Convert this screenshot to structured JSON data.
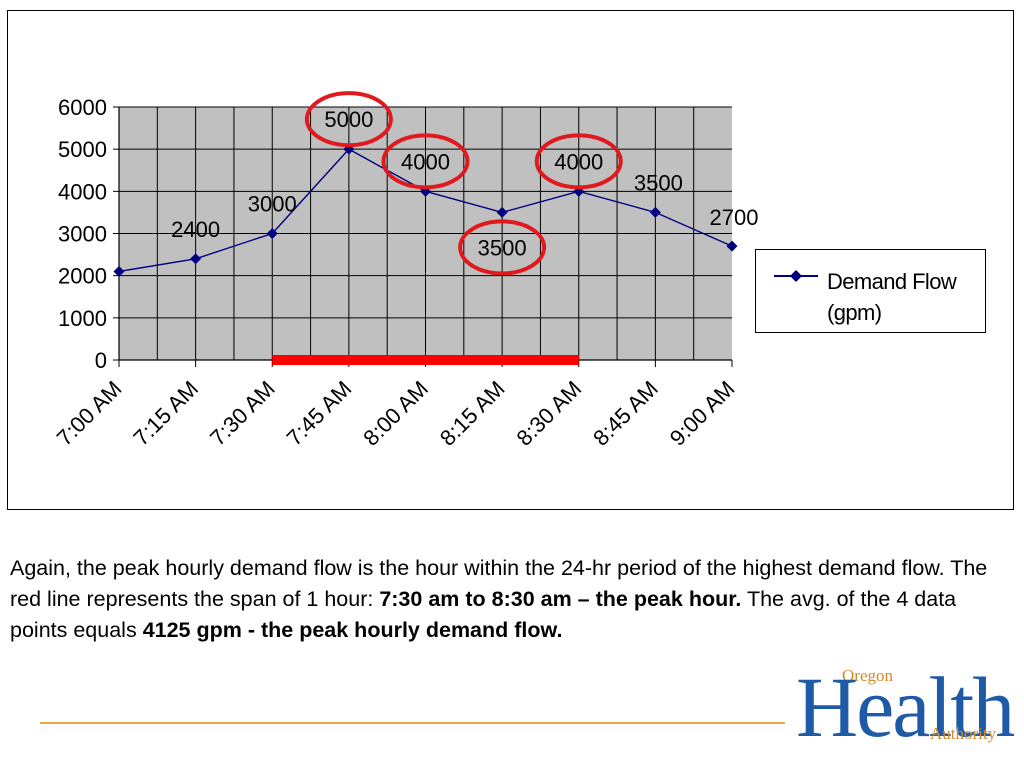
{
  "chart_data": {
    "type": "line",
    "categories": [
      "7:00 AM",
      "7:15 AM",
      "7:30 AM",
      "7:45 AM",
      "8:00 AM",
      "8:15 AM",
      "8:30 AM",
      "8:45 AM",
      "9:00 AM"
    ],
    "series": [
      {
        "name": "Demand Flow (gpm)",
        "values": [
          2100,
          2400,
          3000,
          5000,
          4000,
          3500,
          4000,
          3500,
          2700
        ],
        "color": "#00007f"
      }
    ],
    "data_labels": [
      {
        "category": "7:15 AM",
        "text": "2400"
      },
      {
        "category": "7:30 AM",
        "text": "3000"
      },
      {
        "category": "7:45 AM",
        "text": "5000",
        "circled": true
      },
      {
        "category": "8:00 AM",
        "text": "4000",
        "circled": true
      },
      {
        "category": "8:15 AM",
        "text": "3500",
        "circled": true
      },
      {
        "category": "8:30 AM",
        "text": "4000",
        "circled": true
      },
      {
        "category": "8:45 AM",
        "text": "3500"
      },
      {
        "category": "9:00 AM",
        "text": "2700"
      }
    ],
    "yticks": [
      "0",
      "1000",
      "2000",
      "3000",
      "4000",
      "5000",
      "6000"
    ],
    "ylim": [
      0,
      6000
    ],
    "grid": true,
    "plot_background": "#c0c0c0",
    "highlight_span": {
      "from": "7:30 AM",
      "to": "8:30 AM",
      "color": "#ff0000"
    },
    "circle_color": "#e0191f",
    "title": "",
    "xlabel": "",
    "ylabel": "",
    "legend": {
      "position": "right",
      "labels": [
        "Demand Flow",
        "(gpm)"
      ]
    }
  },
  "caption": {
    "part1": "Again, the peak hourly demand flow is the hour within the 24-hr period of the highest demand flow.  The red line represents the span of 1 hour: ",
    "bold1": "7:30 am to 8:30 am – the peak hour.",
    "part2": "  The avg. of the 4 data points equals ",
    "bold2": "4125 gpm - the peak hourly demand flow."
  },
  "logo": {
    "top_word": "Oregon",
    "main_word": "Health",
    "bottom_word": "Authority",
    "main_color": "#1f5aa6",
    "accent_color": "#d28a2a"
  },
  "footer": {
    "rule_color": "#f0a640"
  }
}
